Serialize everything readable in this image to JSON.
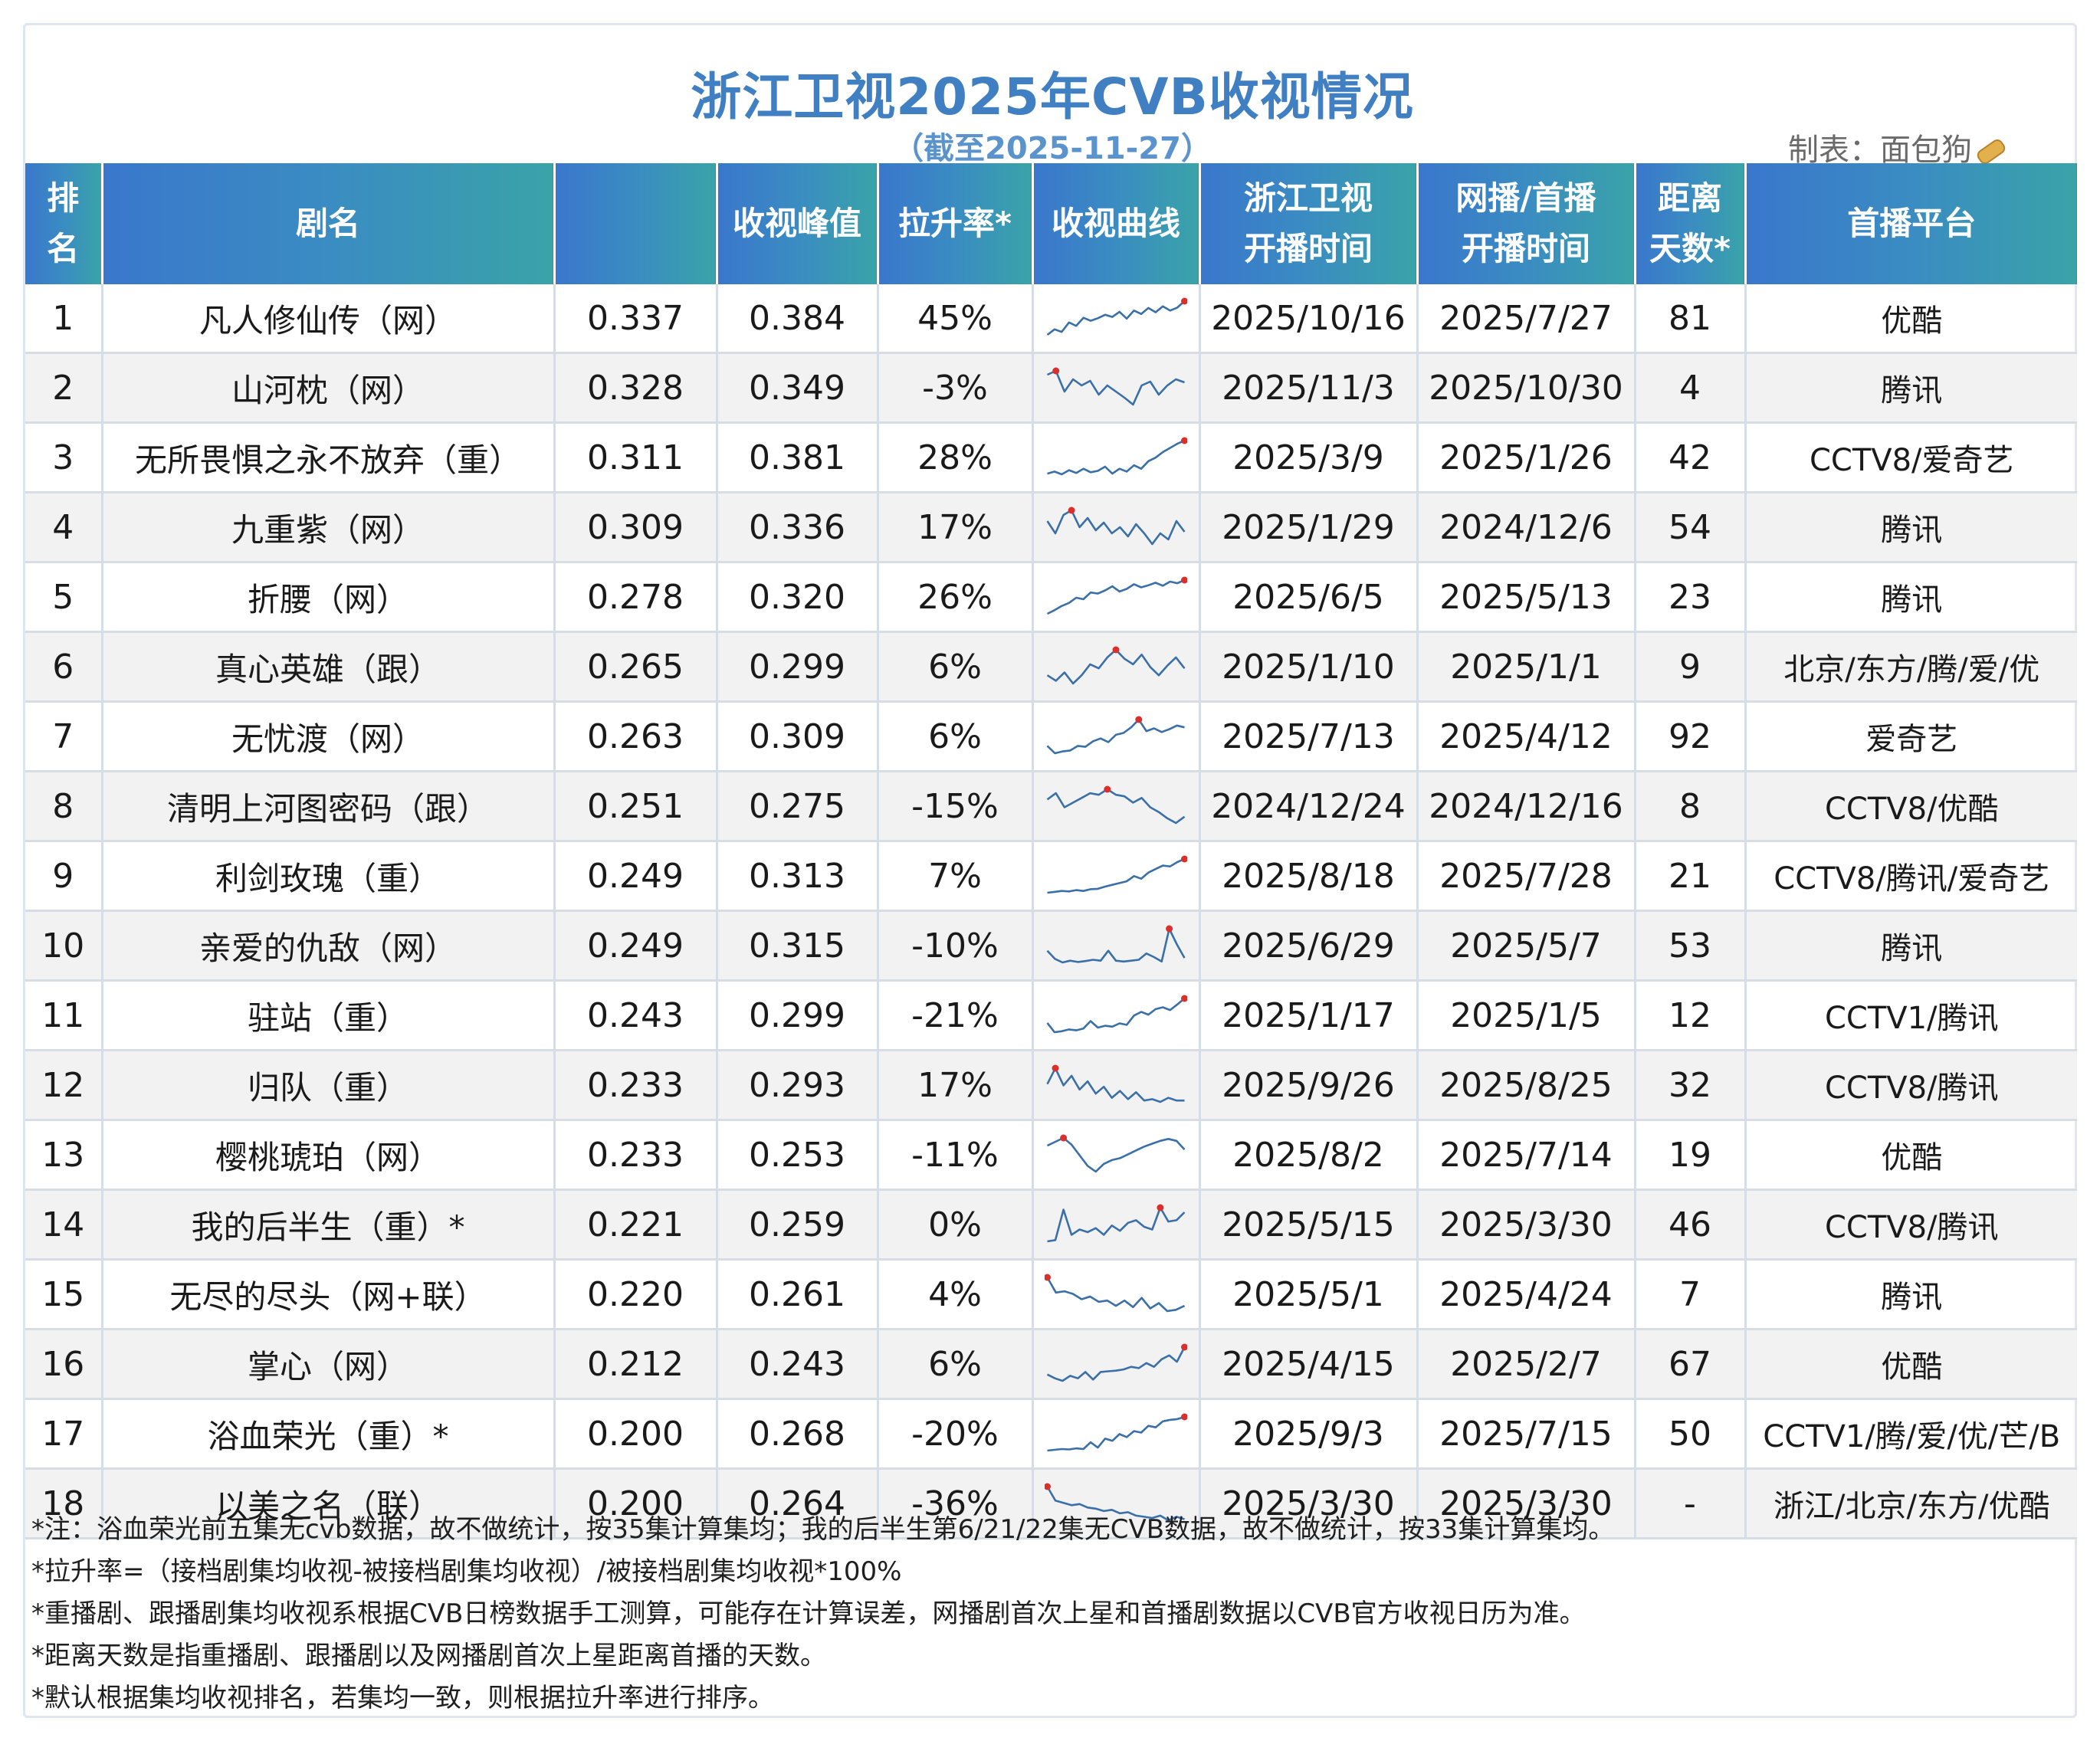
{
  "header": {
    "title": "浙江卫视2025年CVB收视情况",
    "subtitle": "（截至2025-11-27）",
    "maker": "制表：面包狗"
  },
  "chart_data": {
    "type": "table",
    "columns": [
      "排名",
      "剧名",
      "",
      "收视峰值",
      "拉升率*",
      "收视曲线",
      "浙江卫视开播时间",
      "网播/首播开播时间",
      "距离天数*",
      "首播平台"
    ],
    "column_lines": [
      [
        "排",
        "名"
      ],
      [
        "剧名"
      ],
      [
        ""
      ],
      [
        "收视峰值"
      ],
      [
        "拉升率*"
      ],
      [
        "收视曲线"
      ],
      [
        "浙江卫视",
        "开播时间"
      ],
      [
        "网播/首播",
        "开播时间"
      ],
      [
        "距离",
        "天数*"
      ],
      [
        "首播平台"
      ]
    ],
    "rows": [
      {
        "rank": "1",
        "name": "凡人修仙传（网）",
        "avg": "0.337",
        "peak": "0.384",
        "lift": "45%",
        "zj_date": "2025/10/16",
        "first_date": "2025/7/27",
        "days": "81",
        "platform": "优酷",
        "curve": [
          0.305,
          0.318,
          0.312,
          0.334,
          0.326,
          0.345,
          0.338,
          0.344,
          0.352,
          0.347,
          0.359,
          0.343,
          0.362,
          0.354,
          0.368,
          0.358,
          0.372,
          0.362,
          0.369,
          0.384
        ]
      },
      {
        "rank": "2",
        "name": "山河枕（网）",
        "avg": "0.328",
        "peak": "0.349",
        "lift": "-3%",
        "zj_date": "2025/11/3",
        "first_date": "2025/10/30",
        "days": "4",
        "platform": "腾讯",
        "curve": [
          0.344,
          0.349,
          0.322,
          0.338,
          0.33,
          0.336,
          0.318,
          0.33,
          0.322,
          0.314,
          0.305,
          0.33,
          0.335,
          0.318,
          0.33,
          0.338,
          0.334
        ]
      },
      {
        "rank": "3",
        "name": "无所畏惧之永不放弃（重）",
        "avg": "0.311",
        "peak": "0.381",
        "lift": "28%",
        "zj_date": "2025/3/9",
        "first_date": "2025/1/26",
        "days": "42",
        "platform": "CCTV8/爱奇艺",
        "curve": [
          0.286,
          0.292,
          0.284,
          0.296,
          0.288,
          0.3,
          0.29,
          0.294,
          0.306,
          0.286,
          0.3,
          0.292,
          0.31,
          0.3,
          0.322,
          0.332,
          0.348,
          0.36,
          0.372,
          0.381
        ]
      },
      {
        "rank": "4",
        "name": "九重紫（网）",
        "avg": "0.309",
        "peak": "0.336",
        "lift": "17%",
        "zj_date": "2025/1/29",
        "first_date": "2024/12/6",
        "days": "54",
        "platform": "腾讯",
        "curve": [
          0.322,
          0.306,
          0.33,
          0.336,
          0.314,
          0.326,
          0.31,
          0.32,
          0.306,
          0.314,
          0.302,
          0.318,
          0.306,
          0.292,
          0.306,
          0.298,
          0.322,
          0.308
        ]
      },
      {
        "rank": "5",
        "name": "折腰（网）",
        "avg": "0.278",
        "peak": "0.320",
        "lift": "26%",
        "zj_date": "2025/6/5",
        "first_date": "2025/5/13",
        "days": "23",
        "platform": "腾讯",
        "curve": [
          0.255,
          0.262,
          0.27,
          0.276,
          0.286,
          0.283,
          0.296,
          0.294,
          0.3,
          0.308,
          0.298,
          0.303,
          0.312,
          0.306,
          0.31,
          0.315,
          0.309,
          0.317,
          0.314,
          0.32
        ]
      },
      {
        "rank": "6",
        "name": "真心英雄（跟）",
        "avg": "0.265",
        "peak": "0.299",
        "lift": "6%",
        "zj_date": "2025/1/10",
        "first_date": "2025/1/1",
        "days": "9",
        "platform": "北京/东方/腾/爱/优",
        "curve": [
          0.262,
          0.254,
          0.266,
          0.25,
          0.262,
          0.278,
          0.272,
          0.288,
          0.299,
          0.286,
          0.278,
          0.292,
          0.274,
          0.262,
          0.276,
          0.288,
          0.272
        ]
      },
      {
        "rank": "7",
        "name": "无忧渡（网）",
        "avg": "0.263",
        "peak": "0.309",
        "lift": "6%",
        "zj_date": "2025/7/13",
        "first_date": "2025/4/12",
        "days": "92",
        "platform": "爱奇艺",
        "curve": [
          0.252,
          0.236,
          0.24,
          0.242,
          0.252,
          0.25,
          0.262,
          0.268,
          0.26,
          0.276,
          0.28,
          0.292,
          0.309,
          0.284,
          0.29,
          0.282,
          0.288,
          0.296,
          0.292
        ]
      },
      {
        "rank": "8",
        "name": "清明上河图密码（跟）",
        "avg": "0.251",
        "peak": "0.275",
        "lift": "-15%",
        "zj_date": "2024/12/24",
        "first_date": "2024/12/16",
        "days": "8",
        "platform": "CCTV8/优酷",
        "curve": [
          0.262,
          0.27,
          0.252,
          0.258,
          0.264,
          0.27,
          0.268,
          0.275,
          0.268,
          0.266,
          0.258,
          0.264,
          0.252,
          0.246,
          0.238,
          0.232,
          0.24
        ]
      },
      {
        "rank": "9",
        "name": "利剑玫瑰（重）",
        "avg": "0.249",
        "peak": "0.313",
        "lift": "7%",
        "zj_date": "2025/8/18",
        "first_date": "2025/7/28",
        "days": "21",
        "platform": "CCTV8/腾讯/爱奇艺",
        "curve": [
          0.236,
          0.238,
          0.24,
          0.239,
          0.242,
          0.24,
          0.244,
          0.245,
          0.25,
          0.254,
          0.258,
          0.262,
          0.274,
          0.268,
          0.282,
          0.29,
          0.298,
          0.296,
          0.306,
          0.313
        ]
      },
      {
        "rank": "10",
        "name": "亲爱的仇敌（网）",
        "avg": "0.249",
        "peak": "0.315",
        "lift": "-10%",
        "zj_date": "2025/6/29",
        "first_date": "2025/5/7",
        "days": "53",
        "platform": "腾讯",
        "curve": [
          0.266,
          0.248,
          0.24,
          0.244,
          0.241,
          0.243,
          0.246,
          0.244,
          0.266,
          0.244,
          0.242,
          0.244,
          0.246,
          0.26,
          0.252,
          0.242,
          0.315,
          0.28,
          0.25
        ]
      },
      {
        "rank": "11",
        "name": "驻站（重）",
        "avg": "0.243",
        "peak": "0.299",
        "lift": "-21%",
        "zj_date": "2025/1/17",
        "first_date": "2025/1/5",
        "days": "12",
        "platform": "CCTV1/腾讯",
        "curve": [
          0.246,
          0.226,
          0.228,
          0.232,
          0.23,
          0.234,
          0.25,
          0.236,
          0.24,
          0.238,
          0.245,
          0.242,
          0.262,
          0.27,
          0.264,
          0.276,
          0.28,
          0.274,
          0.286,
          0.299
        ]
      },
      {
        "rank": "12",
        "name": "归队（重）",
        "avg": "0.233",
        "peak": "0.293",
        "lift": "17%",
        "zj_date": "2025/9/26",
        "first_date": "2025/8/25",
        "days": "32",
        "platform": "CCTV8/腾讯",
        "curve": [
          0.27,
          0.293,
          0.268,
          0.282,
          0.262,
          0.274,
          0.256,
          0.266,
          0.25,
          0.26,
          0.248,
          0.258,
          0.246,
          0.248,
          0.244,
          0.25,
          0.246,
          0.246
        ]
      },
      {
        "rank": "13",
        "name": "樱桃琥珀（网）",
        "avg": "0.233",
        "peak": "0.253",
        "lift": "-11%",
        "zj_date": "2025/8/2",
        "first_date": "2025/7/14",
        "days": "19",
        "platform": "优酷",
        "curve": [
          0.245,
          0.249,
          0.253,
          0.246,
          0.235,
          0.224,
          0.218,
          0.226,
          0.23,
          0.232,
          0.236,
          0.24,
          0.244,
          0.247,
          0.25,
          0.252,
          0.25,
          0.241
        ]
      },
      {
        "rank": "14",
        "name": "我的后半生（重）*",
        "avg": "0.221",
        "peak": "0.259",
        "lift": "0%",
        "zj_date": "2025/5/15",
        "first_date": "2025/3/30",
        "days": "46",
        "platform": "CCTV8/腾讯",
        "curve": [
          0.208,
          0.21,
          0.256,
          0.218,
          0.226,
          0.222,
          0.228,
          0.218,
          0.232,
          0.224,
          0.236,
          0.24,
          0.23,
          0.226,
          0.259,
          0.238,
          0.24,
          0.252
        ]
      },
      {
        "rank": "15",
        "name": "无尽的尽头（网+联）",
        "avg": "0.220",
        "peak": "0.261",
        "lift": "4%",
        "zj_date": "2025/5/1",
        "first_date": "2025/4/24",
        "days": "7",
        "platform": "腾讯",
        "curve": [
          0.261,
          0.238,
          0.24,
          0.236,
          0.228,
          0.232,
          0.224,
          0.226,
          0.218,
          0.226,
          0.216,
          0.23,
          0.214,
          0.222,
          0.21,
          0.212,
          0.218
        ]
      },
      {
        "rank": "16",
        "name": "掌心（网）",
        "avg": "0.212",
        "peak": "0.243",
        "lift": "6%",
        "zj_date": "2025/4/15",
        "first_date": "2025/2/7",
        "days": "67",
        "platform": "优酷",
        "curve": [
          0.2,
          0.194,
          0.19,
          0.198,
          0.194,
          0.204,
          0.192,
          0.204,
          0.205,
          0.206,
          0.208,
          0.212,
          0.21,
          0.218,
          0.212,
          0.224,
          0.23,
          0.22,
          0.243
        ]
      },
      {
        "rank": "17",
        "name": "浴血荣光（重）*",
        "avg": "0.200",
        "peak": "0.268",
        "lift": "-20%",
        "zj_date": "2025/9/3",
        "first_date": "2025/7/15",
        "days": "50",
        "platform": "CCTV1/腾/爱/优/芒/B",
        "curve": [
          0.178,
          0.18,
          0.182,
          0.181,
          0.184,
          0.182,
          0.2,
          0.186,
          0.21,
          0.204,
          0.222,
          0.214,
          0.23,
          0.226,
          0.244,
          0.24,
          0.256,
          0.26,
          0.262,
          0.268
        ]
      },
      {
        "rank": "18",
        "name": "以美之名（联）",
        "avg": "0.200",
        "peak": "0.264",
        "lift": "-36%",
        "zj_date": "2025/3/30",
        "first_date": "2025/3/30",
        "days": "-",
        "platform": "浙江/北京/东方/优酷",
        "curve": [
          0.264,
          0.24,
          0.236,
          0.232,
          0.234,
          0.228,
          0.226,
          0.222,
          0.224,
          0.218,
          0.22,
          0.214,
          0.212,
          0.21,
          0.214,
          0.206,
          0.212,
          0.208
        ]
      }
    ]
  },
  "notes": [
    "*注：浴血荣光前五集无cvb数据，故不做统计，按35集计算集均；我的后半生第6/21/22集无CVB数据，故不做统计，按33集计算集均。",
    "*拉升率=（接档剧集均收视-被接档剧集均收视）/被接档剧集均收视*100%",
    "*重播剧、跟播剧集均收视系根据CVB日榜数据手工测算，可能存在计算误差，网播剧首次上星和首播剧数据以CVB官方收视日历为准。",
    "*距离天数是指重播剧、跟播剧以及网播剧首次上星距离首播的天数。",
    "*默认根据集均收视排名，若集均一致，则根据拉升率进行排序。"
  ],
  "colors": {
    "title": "#3f7fc2",
    "header_gradient_start": "#3a77cc",
    "header_gradient_end": "#3aa3a8",
    "sparkline": "#3a6fa8",
    "peak_marker": "#d9302c",
    "row_alt": "#f2f2f2"
  }
}
